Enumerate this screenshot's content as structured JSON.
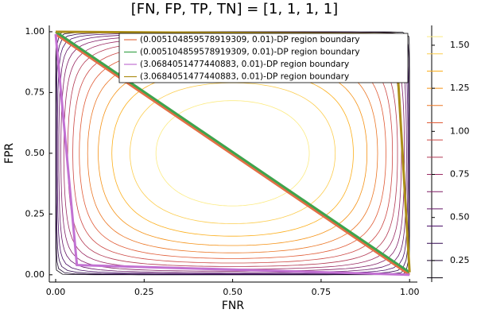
{
  "chart_data": {
    "type": "contour_lines",
    "title": "[FN, FP, TP, TN] = [1, 1, 1, 1]",
    "x_label": "FNR",
    "y_label": "FPR",
    "xlim": [
      -0.018,
      1.022
    ],
    "ylim": [
      -0.03,
      1.026
    ],
    "xticks": [
      {
        "value": 0,
        "label": "0.00"
      },
      0.25,
      {
        "value": 0.5,
        "label": "0.50"
      },
      0.75,
      {
        "value": 1,
        "label": "1.00"
      }
    ],
    "yticks": [
      {
        "value": 0,
        "label": "0.00"
      },
      0.25,
      {
        "value": 0.5,
        "label": "0.50"
      },
      0.75,
      {
        "value": 1,
        "label": "1.00"
      }
    ],
    "contour": {
      "levels": [
        0.15,
        0.25,
        0.35,
        0.45,
        0.55,
        0.65,
        0.75,
        0.85,
        0.95,
        1.05,
        1.15,
        1.25,
        1.35,
        1.45,
        1.55
      ],
      "colormap": [
        "#000004",
        "#420a68",
        "#932667",
        "#dd513a",
        "#fca50a",
        "#fcffa4"
      ],
      "clim": [
        0.125,
        1.615
      ],
      "cticks": [
        0.25,
        {
          "value": 0.5,
          "label": "0.50"
        },
        0.75,
        {
          "value": 1,
          "label": "1.00"
        },
        1.25,
        {
          "value": 1.5,
          "label": "1.50"
        }
      ]
    },
    "legend": "top-right",
    "series": [
      {
        "name": "(0.005104859578919309, 0.01)-DP region boundary",
        "color": "#e26f46",
        "x": [
          0,
          1
        ],
        "values": [
          0.99,
          0
        ]
      },
      {
        "name": "(0.005104859578919309, 0.01)-DP region boundary",
        "color": "#3da44d",
        "x": [
          0,
          1
        ],
        "values": [
          1,
          0.01
        ]
      },
      {
        "name": "(3.0684051477440883, 0.01)-DP region boundary",
        "color": "#c271d2",
        "x": [
          0,
          0.06,
          1
        ],
        "values": [
          0.99,
          0.04,
          0
        ]
      },
      {
        "name": "(3.0684051477440883, 0.01)-DP region boundary",
        "color": "#ac8e18",
        "x": [
          0,
          0.96,
          1
        ],
        "values": [
          1,
          0.99,
          0.01
        ]
      }
    ]
  }
}
